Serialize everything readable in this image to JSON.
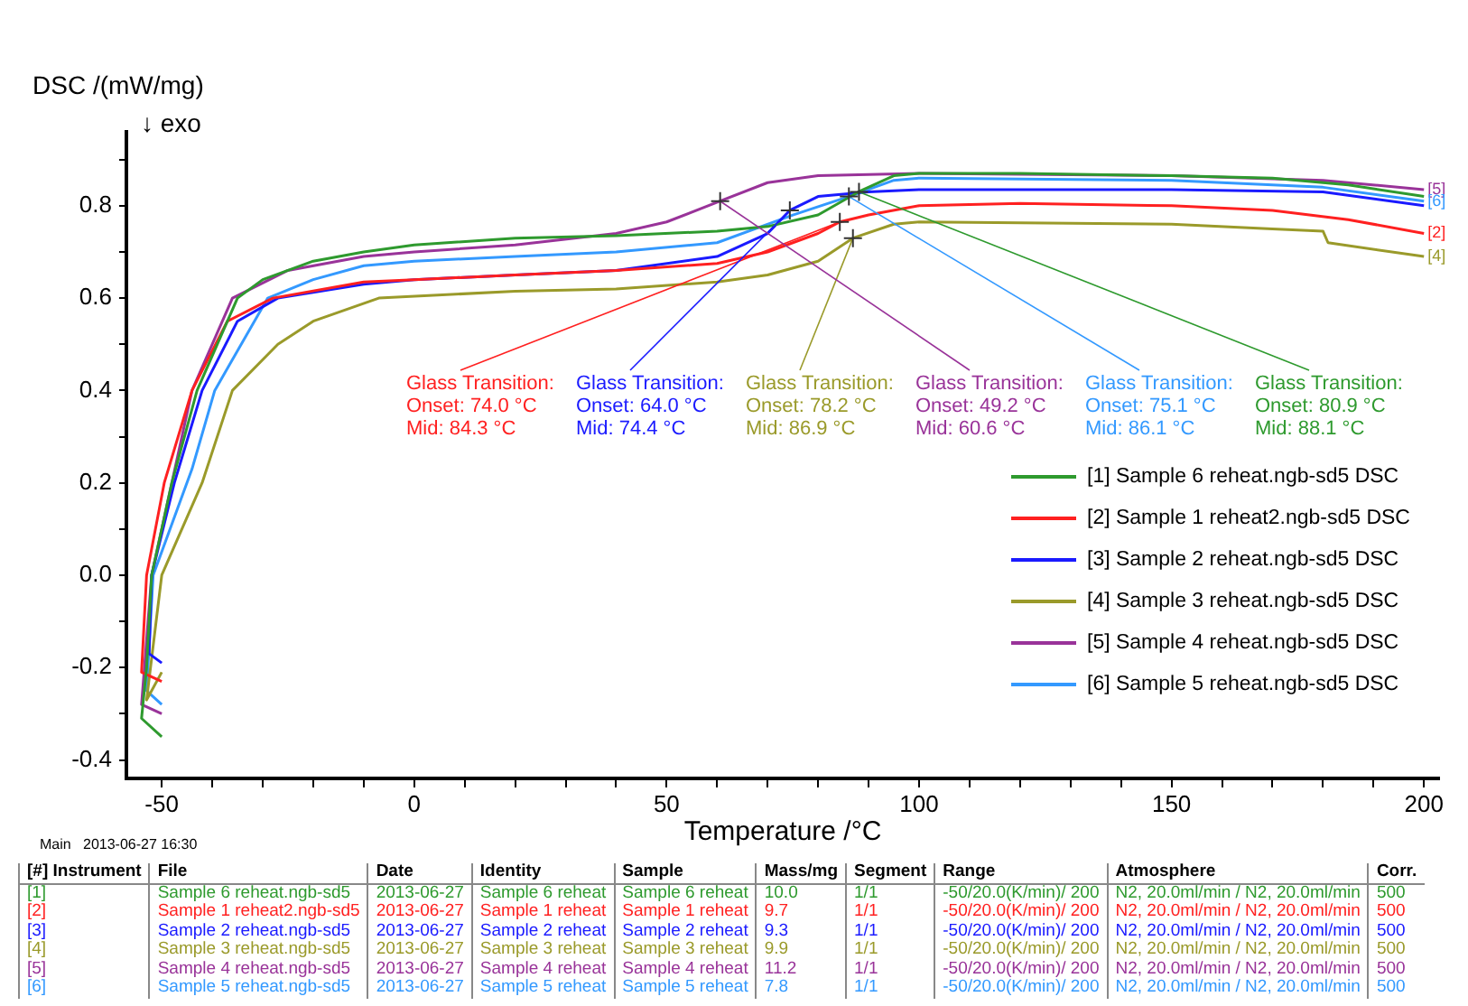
{
  "chart_data": {
    "type": "line",
    "xlabel": "Temperature /°C",
    "ylabel": "DSC /(mW/mg)",
    "xlim": [
      -57,
      203
    ],
    "ylim": [
      -0.44,
      0.96
    ],
    "xticks": [
      -50,
      {
        "value": -40,
        "label": null
      },
      {
        "value": -30,
        "label": null
      },
      {
        "value": -20,
        "label": null
      },
      {
        "value": -10,
        "label": null
      },
      0,
      {
        "value": 10,
        "label": null
      },
      {
        "value": 20,
        "label": null
      },
      {
        "value": 30,
        "label": null
      },
      {
        "value": 40,
        "label": null
      },
      50,
      {
        "value": 60,
        "label": null
      },
      {
        "value": 70,
        "label": null
      },
      {
        "value": 80,
        "label": null
      },
      {
        "value": 90,
        "label": null
      },
      100,
      {
        "value": 110,
        "label": null
      },
      {
        "value": 120,
        "label": null
      },
      {
        "value": 130,
        "label": null
      },
      {
        "value": 140,
        "label": null
      },
      150,
      {
        "value": 160,
        "label": null
      },
      {
        "value": 170,
        "label": null
      },
      {
        "value": 180,
        "label": null
      },
      {
        "value": 190,
        "label": null
      },
      200
    ],
    "yticks": [
      -0.4,
      {
        "value": -0.3,
        "label": null
      },
      -0.2,
      {
        "value": -0.1,
        "label": null
      },
      {
        "value": 0,
        "label": "0.0"
      },
      {
        "value": 0.1,
        "label": null
      },
      0.2,
      {
        "value": 0.3,
        "label": null
      },
      0.4,
      {
        "value": 0.5,
        "label": null
      },
      0.6,
      {
        "value": 0.7,
        "label": null
      },
      0.8,
      {
        "value": 0.9,
        "label": null
      }
    ],
    "grid": false,
    "legend": "right",
    "marker": "none",
    "line_style": "solid",
    "series": [
      {
        "name": "[1] Sample 6 reheat.ngb-sd5 DSC",
        "color": "#2e9a2e",
        "x": [
          -50,
          -54,
          -53,
          -52,
          -48,
          -43,
          -35,
          -30,
          -20,
          -10,
          0,
          20,
          40,
          60,
          70,
          80,
          88,
          95,
          100,
          120,
          150,
          170,
          185,
          200
        ],
        "values": [
          -0.35,
          -0.31,
          -0.2,
          0,
          0.2,
          0.4,
          0.6,
          0.64,
          0.68,
          0.7,
          0.715,
          0.73,
          0.735,
          0.745,
          0.755,
          0.78,
          0.83,
          0.865,
          0.87,
          0.87,
          0.865,
          0.86,
          0.845,
          0.82
        ]
      },
      {
        "name": "[2] Sample 1 reheat2.ngb-sd5 DSC",
        "color": "#ff2020",
        "x": [
          -50,
          -54,
          -53,
          -49.5,
          -44,
          -37,
          -28,
          -10,
          0,
          20,
          40,
          60,
          70,
          80,
          84.3,
          90,
          100,
          120,
          150,
          170,
          185,
          200
        ],
        "values": [
          -0.23,
          -0.21,
          0,
          0.2,
          0.4,
          0.55,
          0.6,
          0.635,
          0.64,
          0.65,
          0.66,
          0.675,
          0.7,
          0.74,
          0.765,
          0.78,
          0.8,
          0.805,
          0.8,
          0.79,
          0.77,
          0.74
        ]
      },
      {
        "name": "[3] Sample 2 reheat.ngb-sd5 DSC",
        "color": "#1a1aff",
        "x": [
          -50,
          -52.5,
          -52,
          -47.5,
          -42,
          -35,
          -27,
          -10,
          0,
          20,
          40,
          60,
          70,
          74.4,
          80,
          90,
          100,
          150,
          180,
          200
        ],
        "values": [
          -0.19,
          -0.17,
          0,
          0.2,
          0.4,
          0.55,
          0.6,
          0.63,
          0.64,
          0.65,
          0.66,
          0.69,
          0.74,
          0.79,
          0.82,
          0.83,
          0.835,
          0.835,
          0.83,
          0.8
        ]
      },
      {
        "name": "[4] Sample 3 reheat.ngb-sd5 DSC",
        "color": "#9a9a2a",
        "x": [
          -50,
          -53,
          -50,
          -42,
          -36,
          -27,
          -20,
          -7,
          20,
          40,
          60,
          70,
          80,
          86.9,
          95,
          100,
          150,
          170,
          180,
          181,
          200
        ],
        "values": [
          -0.21,
          -0.27,
          0,
          0.2,
          0.4,
          0.5,
          0.55,
          0.6,
          0.615,
          0.62,
          0.635,
          0.65,
          0.68,
          0.73,
          0.76,
          0.765,
          0.76,
          0.75,
          0.745,
          0.72,
          0.69
        ]
      },
      {
        "name": "[5] Sample 4 reheat.ngb-sd5 DSC",
        "color": "#993399",
        "x": [
          -50,
          -54,
          -52,
          -48,
          -44,
          -36,
          -25,
          -10,
          0,
          20,
          40,
          50,
          60.6,
          70,
          80,
          100,
          150,
          180,
          200
        ],
        "values": [
          -0.3,
          -0.28,
          0,
          0.2,
          0.4,
          0.6,
          0.66,
          0.69,
          0.7,
          0.715,
          0.74,
          0.765,
          0.81,
          0.85,
          0.865,
          0.87,
          0.865,
          0.855,
          0.835
        ]
      },
      {
        "name": "[6] Sample 5 reheat.ngb-sd5 DSC",
        "color": "#3399ff",
        "x": [
          -50,
          -53,
          -51.7,
          -44,
          -39.5,
          -29,
          -20,
          -10,
          0,
          20,
          40,
          60,
          75,
          86.1,
          95,
          100,
          150,
          180,
          200
        ],
        "values": [
          -0.28,
          -0.25,
          0,
          0.23,
          0.4,
          0.6,
          0.64,
          0.67,
          0.68,
          0.69,
          0.7,
          0.72,
          0.78,
          0.82,
          0.855,
          0.86,
          0.855,
          0.84,
          0.81
        ]
      }
    ],
    "annotations": [
      {
        "text": "Glass Transition:\nOnset: 74.0 °C\nMid: 84.3 °C",
        "x": 84.3,
        "y": 0.765
      },
      {
        "text": "Glass Transition:\nOnset: 64.0 °C\nMid: 74.4 °C",
        "x": 74.4,
        "y": 0.79
      },
      {
        "text": "Glass Transition:\nOnset: 78.2 °C\nMid: 86.9 °C",
        "x": 86.9,
        "y": 0.73
      },
      {
        "text": "Glass Transition:\nOnset: 49.2 °C\nMid: 60.6 °C",
        "x": 60.6,
        "y": 0.81
      },
      {
        "text": "Glass Transition:\nOnset: 75.1 °C\nMid: 86.1 °C",
        "x": 86.1,
        "y": 0.82
      },
      {
        "text": "Glass Transition:\nOnset: 80.9 °C\nMid: 88.1 °C",
        "x": 88.1,
        "y": 0.83
      },
      {
        "text": "[5]",
        "x": 200,
        "y": 0.835
      },
      {
        "text": "[6]",
        "x": 200,
        "y": 0.81
      },
      {
        "text": "[2]",
        "x": 200,
        "y": 0.74
      },
      {
        "text": "[4]",
        "x": 200,
        "y": 0.69
      },
      "↓ exo",
      "Main   2013-06-27 16:30",
      "[#] Instrument",
      "File",
      "Date",
      "Identity",
      "Sample",
      "Mass/mg",
      "Segment",
      "Range",
      "Atmosphere",
      "Corr.",
      "[1]",
      "Sample 6 reheat.ngb-sd5",
      "2013-06-27",
      "Sample 6 reheat",
      "Sample 6 reheat",
      "10.0",
      "1/1",
      "-50/20.0(K/min)/ 200",
      "N2, 20.0ml/min / N2, 20.0ml/min",
      "500",
      "[2]",
      "Sample 1 reheat2.ngb-sd5",
      "2013-06-27",
      "Sample 1 reheat",
      "Sample 1 reheat",
      "9.7",
      "1/1",
      "-50/20.0(K/min)/ 200",
      "N2, 20.0ml/min / N2, 20.0ml/min",
      "500",
      "[3]",
      "Sample 2 reheat.ngb-sd5",
      "2013-06-27",
      "Sample 2 reheat",
      "Sample 2 reheat",
      "9.3",
      "1/1",
      "-50/20.0(K/min)/ 200",
      "N2, 20.0ml/min / N2, 20.0ml/min",
      "500",
      "[4]",
      "Sample 3 reheat.ngb-sd5",
      "2013-06-27",
      "Sample 3 reheat",
      "Sample 3 reheat",
      "9.9",
      "1/1",
      "-50/20.0(K/min)/ 200",
      "N2, 20.0ml/min / N2, 20.0ml/min",
      "500",
      "[5]",
      "Sample 4 reheat.ngb-sd5",
      "2013-06-27",
      "Sample 4 reheat",
      "Sample 4 reheat",
      "11.2",
      "1/1",
      "-50/20.0(K/min)/ 200",
      "N2, 20.0ml/min / N2, 20.0ml/min",
      "500",
      "[6]",
      "Sample 5 reheat.ngb-sd5",
      "2013-06-27",
      "Sample 5 reheat",
      "Sample 5 reheat",
      "7.8",
      "1/1",
      "-50/20.0(K/min)/ 200",
      "N2, 20.0ml/min / N2, 20.0ml/min",
      "500"
    ]
  }
}
